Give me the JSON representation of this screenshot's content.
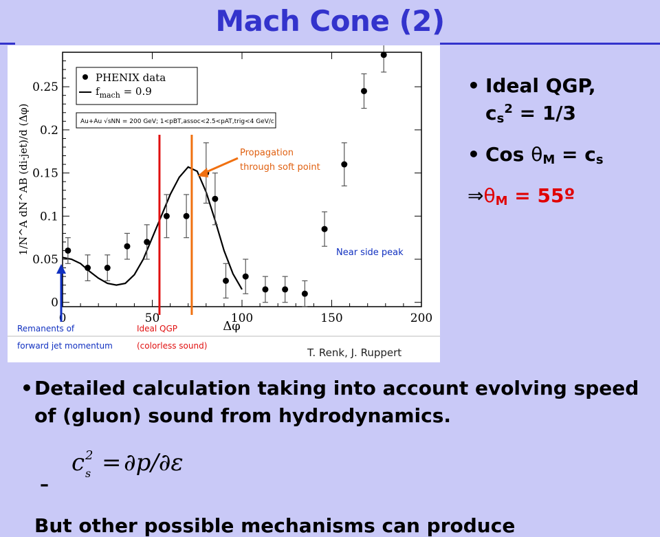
{
  "slide": {
    "title": "Mach Cone (2)"
  },
  "right_bullets": {
    "b1_text": "Ideal QGP,",
    "b1_c": "c",
    "b1_sub": "s",
    "b1_sup": "2",
    "b1_rest": " = 1/3",
    "b2_text": "Cos ",
    "b2_theta": "θ",
    "b2_sub": "M",
    "b2_rest": " = c",
    "b2_sub2": "s",
    "implies": "⇒",
    "implies_theta": "θ",
    "implies_sub": "M",
    "implies_rest": " = 55º",
    "bullet_glyph": "•"
  },
  "bottom": {
    "bullet_glyph": "•",
    "paragraph": "Detailed calculation taking into account evolving speed of (gluon) sound from hydrodynamics.",
    "dash": "–",
    "cutoff_line": "But other possible mechanisms can produce"
  },
  "figure": {
    "ylabel": "1/N^A dN^AB (di-jet)/d (Δφ)",
    "xlabel": "Δφ",
    "legend_data": "PHENIX data",
    "legend_curve": "f",
    "legend_curve_sub": "mach",
    "legend_curve_rest": " = 0.9",
    "box_label": "Au+Au √sNN = 200 GeV; 1<pBT,assoc<2.5<pAT,trig<4 GeV/c",
    "annot_propagation_1": "Propagation",
    "annot_propagation_2": "through soft point",
    "annot_near_side": "Near side peak",
    "annot_remnants_1": "Remanents of",
    "annot_remnants_2": "forward jet momentum",
    "annot_ideal_1": "Ideal QGP",
    "annot_ideal_2": "(colorless sound)",
    "credit": "T. Renk, J. Ruppert",
    "colors": {
      "red_line": "#e01010",
      "orange_line": "#f07010",
      "blue_arrow": "#1030c0",
      "annot_orange": "#e06010",
      "annot_blue": "#1030c0"
    }
  },
  "chart_data": {
    "type": "scatter",
    "xlim": [
      0,
      200
    ],
    "ylim": [
      -0.005,
      0.29
    ],
    "xticks": [
      0,
      50,
      100,
      150,
      200
    ],
    "yticks": [
      0,
      0.05,
      0.1,
      0.15,
      0.2,
      0.25
    ],
    "xtick_labels": [
      "0",
      "50",
      "100",
      "150",
      "200"
    ],
    "ytick_labels": [
      "0",
      "0.05",
      "0.1",
      "0.15",
      "0.2",
      "0.25"
    ],
    "series": [
      {
        "name": "PHENIX data",
        "points": [
          {
            "x": 3,
            "y": 0.06,
            "err": 0.015
          },
          {
            "x": 14,
            "y": 0.04,
            "err": 0.015
          },
          {
            "x": 25,
            "y": 0.04,
            "err": 0.015
          },
          {
            "x": 36,
            "y": 0.065,
            "err": 0.015
          },
          {
            "x": 47,
            "y": 0.07,
            "err": 0.02
          },
          {
            "x": 58,
            "y": 0.1,
            "err": 0.025
          },
          {
            "x": 69,
            "y": 0.1,
            "err": 0.025
          },
          {
            "x": 80,
            "y": 0.15,
            "err": 0.035
          },
          {
            "x": 85,
            "y": 0.12,
            "err": 0.03
          },
          {
            "x": 91,
            "y": 0.025,
            "err": 0.02
          },
          {
            "x": 102,
            "y": 0.03,
            "err": 0.02
          },
          {
            "x": 113,
            "y": 0.015,
            "err": 0.015
          },
          {
            "x": 124,
            "y": 0.015,
            "err": 0.015
          },
          {
            "x": 135,
            "y": 0.01,
            "err": 0.015
          },
          {
            "x": 146,
            "y": 0.085,
            "err": 0.02
          },
          {
            "x": 157,
            "y": 0.16,
            "err": 0.025
          },
          {
            "x": 168,
            "y": 0.245,
            "err": 0.02
          },
          {
            "x": 179,
            "y": 0.287,
            "err": 0.02
          }
        ]
      },
      {
        "name": "f_mach = 0.9",
        "x": [
          0,
          5,
          10,
          15,
          20,
          25,
          30,
          35,
          40,
          45,
          50,
          55,
          60,
          65,
          70,
          75,
          80,
          85,
          90,
          95,
          100
        ],
        "y": [
          0.052,
          0.05,
          0.045,
          0.036,
          0.028,
          0.022,
          0.02,
          0.022,
          0.032,
          0.05,
          0.075,
          0.1,
          0.125,
          0.145,
          0.157,
          0.152,
          0.128,
          0.095,
          0.06,
          0.033,
          0.015
        ]
      }
    ],
    "vlines": [
      {
        "x": 54
      },
      {
        "x": 72
      }
    ]
  }
}
